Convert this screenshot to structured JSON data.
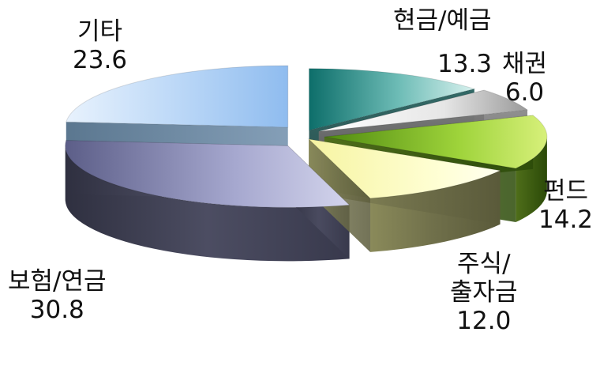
{
  "chart_data": {
    "type": "pie",
    "style": "3d-exploded",
    "title": "",
    "slices": [
      {
        "label": "현금/예금",
        "value": 13.3,
        "color": "#1f8a86",
        "value_text": "13.3"
      },
      {
        "label": "채권",
        "value": 6.0,
        "color": "#c8c8c8",
        "value_text": "6.0"
      },
      {
        "label": "펀드",
        "value": 14.2,
        "color": "#8ccc2a",
        "value_text": "14.2"
      },
      {
        "label": "주식/\n출자금",
        "label_line1": "주식/",
        "label_line2": "출자금",
        "value": 12.0,
        "color": "#f2f0a8",
        "value_text": "12.0"
      },
      {
        "label": "보험/연금",
        "value": 30.8,
        "color": "#7e7fa6",
        "value_text": "30.8"
      },
      {
        "label": "기타",
        "value": 23.6,
        "color": "#9cc4f2",
        "value_text": "23.6"
      }
    ]
  }
}
